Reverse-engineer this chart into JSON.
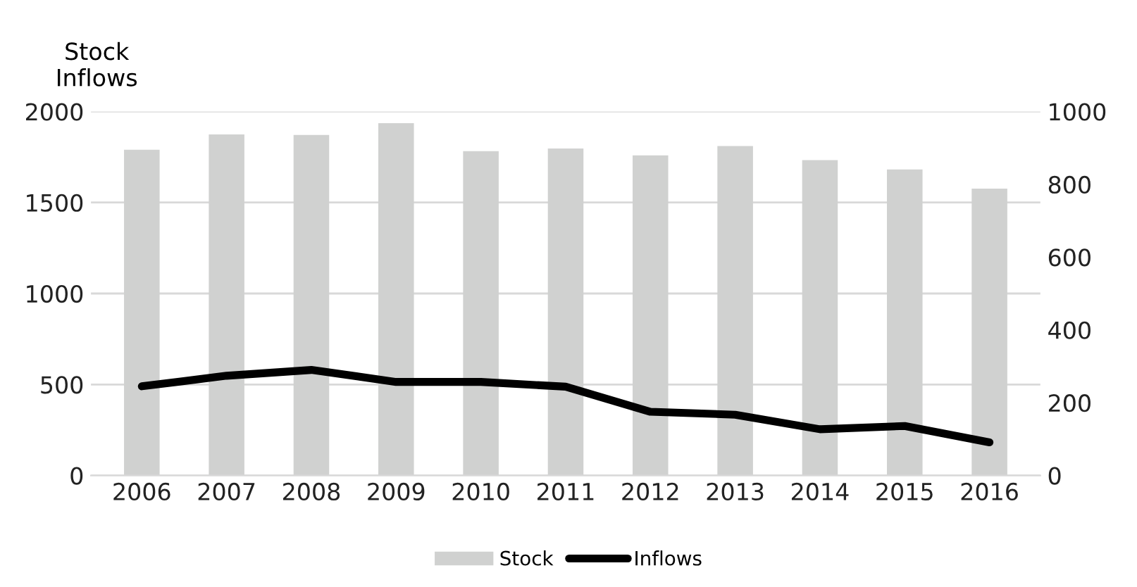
{
  "chart_data": {
    "type": "bar",
    "title": "Stock\nInflows",
    "categories": [
      "2006",
      "2007",
      "2008",
      "2009",
      "2010",
      "2011",
      "2012",
      "2013",
      "2014",
      "2015",
      "2016"
    ],
    "series": [
      {
        "name": "Stock",
        "color": "#d0d1d0",
        "values": [
          1790,
          1874,
          1871,
          1936,
          1782,
          1797,
          1759,
          1810,
          1733,
          1682,
          1576
        ]
      },
      {
        "name": "Inflows",
        "type": "line",
        "axis": "y2",
        "color": "#000000",
        "values": [
          245,
          274,
          290,
          257,
          257,
          244,
          175,
          167,
          127,
          136,
          91
        ]
      }
    ],
    "ylim": [
      0,
      2000
    ],
    "yticks": [
      0,
      500,
      1000,
      1500,
      2000
    ],
    "y2lim": [
      0,
      1000
    ],
    "y2ticks": [
      0,
      200,
      400,
      600,
      800,
      1000
    ],
    "grid": "y",
    "legend": "bottom",
    "marker": "none",
    "line_style": "solid"
  }
}
